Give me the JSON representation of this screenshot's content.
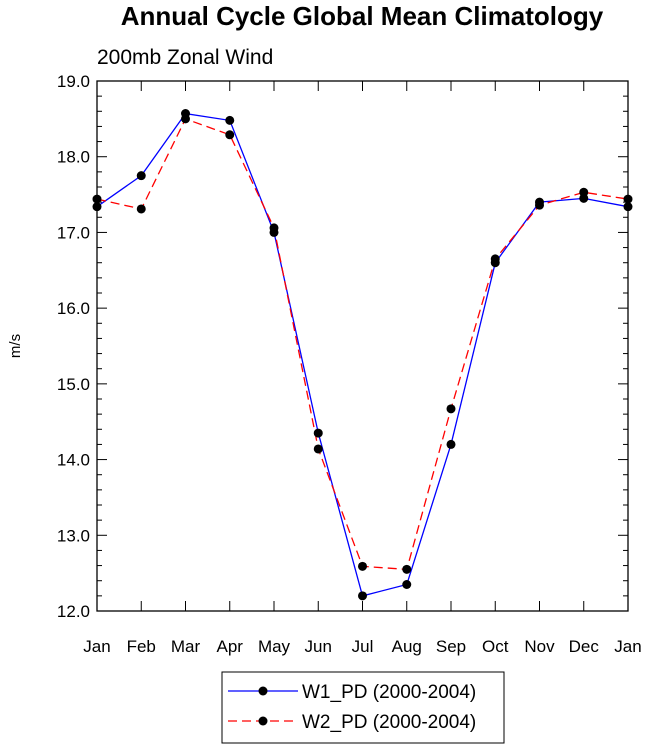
{
  "chart_data": {
    "type": "line",
    "title": "Annual Cycle Global Mean Climatology",
    "subtitle": "200mb Zonal Wind",
    "xlabel": "",
    "ylabel": "m/s",
    "categories": [
      "Jan",
      "Feb",
      "Mar",
      "Apr",
      "May",
      "Jun",
      "Jul",
      "Aug",
      "Sep",
      "Oct",
      "Nov",
      "Dec",
      "Jan"
    ],
    "ylim": [
      12.0,
      19.0
    ],
    "yticks": [
      "12.0",
      "13.0",
      "14.0",
      "15.0",
      "16.0",
      "17.0",
      "18.0",
      "19.0"
    ],
    "grid": false,
    "legend_position": "bottom-center",
    "series": [
      {
        "name": "W1_PD (2000-2004)",
        "color": "#0000ff",
        "line_style": "solid",
        "marker": "filled-circle",
        "values": [
          17.34,
          17.75,
          18.57,
          18.48,
          17.0,
          14.35,
          12.2,
          12.35,
          14.2,
          16.6,
          17.4,
          17.45,
          17.34
        ]
      },
      {
        "name": "W2_PD (2000-2004)",
        "color": "#ff0000",
        "line_style": "dashed",
        "marker": "filled-circle",
        "values": [
          17.44,
          17.31,
          18.5,
          18.29,
          17.06,
          14.14,
          12.59,
          12.55,
          14.67,
          16.65,
          17.36,
          17.53,
          17.44
        ]
      }
    ]
  }
}
